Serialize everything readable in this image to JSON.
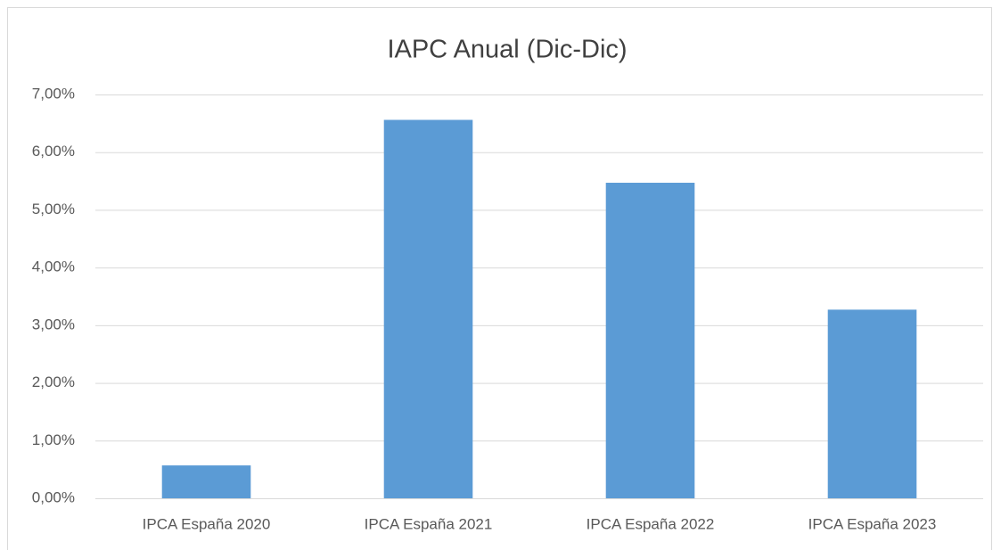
{
  "chart_data": {
    "type": "bar",
    "title": "IAPC Anual (Dic-Dic)",
    "categories": [
      "IPCA España 2020",
      "IPCA España 2021",
      "IPCA España 2022",
      "IPCA España 2023"
    ],
    "values": [
      0.57,
      6.56,
      5.47,
      3.27
    ],
    "color": "#5b9bd5",
    "ylim": [
      0,
      7
    ],
    "yticks": [
      {
        "value": 0,
        "label": "0,00%"
      },
      {
        "value": 1,
        "label": "1,00%"
      },
      {
        "value": 2,
        "label": "2,00%"
      },
      {
        "value": 3,
        "label": "3,00%"
      },
      {
        "value": 4,
        "label": "4,00%"
      },
      {
        "value": 5,
        "label": "5,00%"
      },
      {
        "value": 6,
        "label": "6,00%"
      },
      {
        "value": 7,
        "label": "7,00%"
      }
    ],
    "grid": true
  }
}
